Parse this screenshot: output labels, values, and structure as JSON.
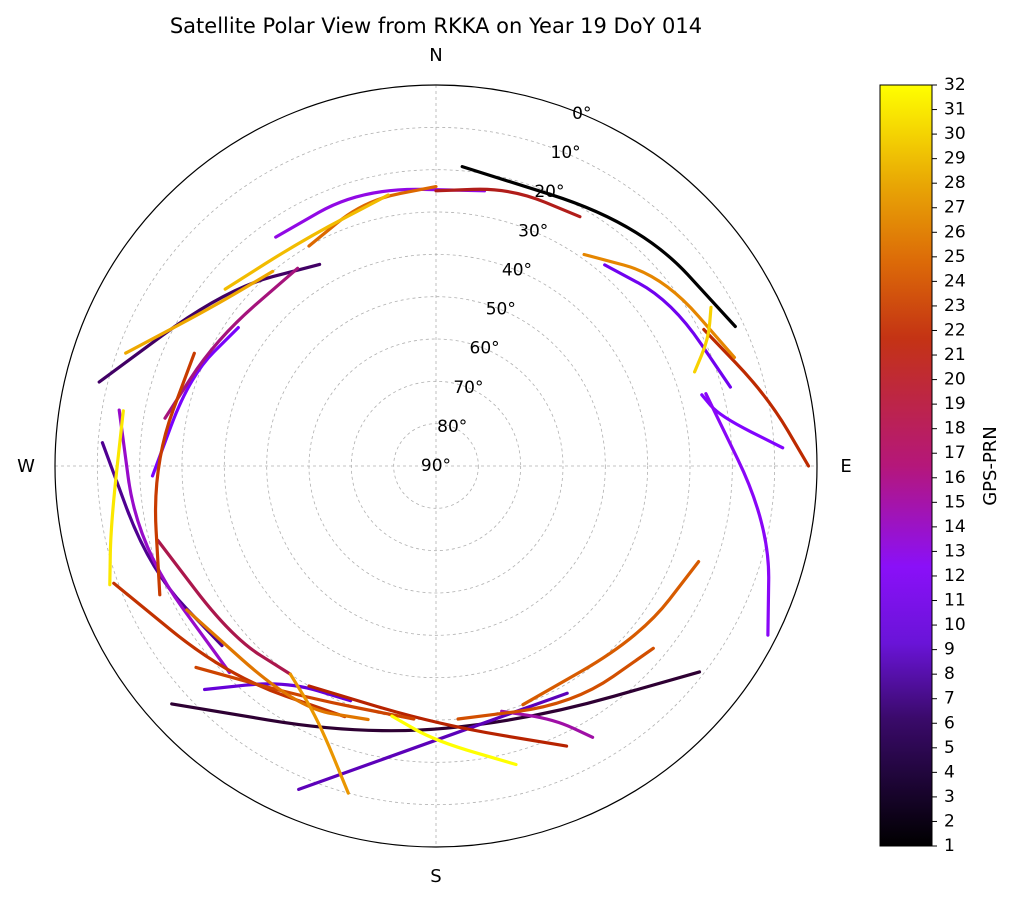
{
  "chart_data": {
    "type": "scatter",
    "subtype": "polar-skyplot",
    "title": "Satellite Polar View from RKKA on Year 19 DoY 014",
    "compass": {
      "north": "N",
      "east": "E",
      "south": "S",
      "west": "W"
    },
    "elevation_ticks": [
      0,
      10,
      20,
      30,
      40,
      50,
      60,
      70,
      80,
      90
    ],
    "elevation_tick_labels": [
      "0°",
      "10°",
      "20°",
      "30°",
      "40°",
      "50°",
      "60°",
      "70°",
      "80°",
      "90°"
    ],
    "elevation_range": [
      0,
      90
    ],
    "azimuth_direction": "clockwise",
    "azimuth_zero": "north",
    "grid": true,
    "grid_style": "dashed",
    "colorbar": {
      "label": "GPS-PRN",
      "colormap": "gnuplot",
      "min": 1,
      "max": 32,
      "ticks": [
        1,
        2,
        3,
        4,
        5,
        6,
        7,
        8,
        9,
        10,
        11,
        12,
        13,
        14,
        15,
        16,
        17,
        18,
        19,
        20,
        21,
        22,
        23,
        24,
        25,
        26,
        27,
        28,
        29,
        30,
        31,
        32
      ],
      "tick_labels": [
        "1",
        "2",
        "3",
        "4",
        "5",
        "6",
        "7",
        "8",
        "9",
        "10",
        "11",
        "12",
        "13",
        "14",
        "15",
        "16",
        "17",
        "18",
        "19",
        "20",
        "21",
        "22",
        "23",
        "24",
        "25",
        "26",
        "27",
        "28",
        "29",
        "30",
        "31",
        "32"
      ],
      "placement": "right"
    },
    "series_note_units": "points are [azimuth_deg, elevation_deg]; color encodes PRN",
    "series": [
      {
        "prn": 1,
        "points": [
          [
            5,
            19
          ],
          [
            40,
            15
          ],
          [
            65,
            12
          ]
        ]
      },
      {
        "prn": 2,
        "points": [
          [
            228,
            6
          ],
          [
            195,
            24
          ],
          [
            160,
            26
          ],
          [
            128,
            11
          ]
        ]
      },
      {
        "prn": 3,
        "points": [
          [
            284,
            8
          ],
          [
            310,
            25
          ],
          [
            330,
            35
          ]
        ]
      },
      {
        "prn": 4,
        "points": [
          [
            274,
            11
          ],
          [
            250,
            18
          ],
          [
            230,
            24
          ]
        ]
      },
      {
        "prn": 5,
        "points": [
          [
            203,
            7
          ],
          [
            175,
            27
          ],
          [
            150,
            28
          ]
        ]
      },
      {
        "prn": 6,
        "points": [
          [
            226,
            14
          ],
          [
            215,
            28
          ],
          [
            200,
            31
          ]
        ]
      },
      {
        "prn": 7,
        "points": [
          [
            40,
            28
          ],
          [
            55,
            22
          ],
          [
            75,
            18
          ]
        ]
      },
      {
        "prn": 8,
        "points": [
          [
            268,
            23
          ],
          [
            290,
            28
          ],
          [
            305,
            33
          ]
        ]
      },
      {
        "prn": 9,
        "points": [
          [
            87,
            8
          ],
          [
            80,
            22
          ],
          [
            75,
            25
          ]
        ]
      },
      {
        "prn": 10,
        "points": [
          [
            75,
            24
          ],
          [
            100,
            10
          ],
          [
            117,
            2
          ]
        ]
      },
      {
        "prn": 11,
        "points": [
          [
            325,
            24
          ],
          [
            345,
            22
          ],
          [
            10,
            24
          ]
        ]
      },
      {
        "prn": 12,
        "points": [
          [
            280,
            14
          ],
          [
            255,
            17
          ],
          [
            225,
            21
          ]
        ]
      },
      {
        "prn": 13,
        "points": [
          [
            150,
            16
          ],
          [
            155,
            24
          ],
          [
            165,
            30
          ]
        ]
      },
      {
        "prn": 14,
        "points": [
          [
            325,
            33
          ],
          [
            300,
            30
          ],
          [
            280,
            25
          ]
        ]
      },
      {
        "prn": 15,
        "points": [
          [
            255,
            22
          ],
          [
            230,
            27
          ],
          [
            215,
            30
          ]
        ]
      },
      {
        "prn": 16,
        "points": [
          [
            0,
            25
          ],
          [
            15,
            22
          ],
          [
            30,
            22
          ]
        ]
      },
      {
        "prn": 17,
        "points": [
          [
            155,
            17
          ],
          [
            180,
            29
          ],
          [
            210,
            30
          ]
        ]
      },
      {
        "prn": 18,
        "points": [
          [
            63,
            19
          ],
          [
            78,
            10
          ],
          [
            90,
            2
          ]
        ]
      },
      {
        "prn": 19,
        "points": [
          [
            250,
            9
          ],
          [
            225,
            20
          ],
          [
            200,
            27
          ]
        ]
      },
      {
        "prn": 20,
        "points": [
          [
            245,
            18
          ],
          [
            270,
            23
          ],
          [
            295,
            27
          ]
        ]
      },
      {
        "prn": 21,
        "points": [
          [
            230,
            16
          ],
          [
            210,
            27
          ],
          [
            185,
            30
          ]
        ]
      },
      {
        "prn": 22,
        "points": [
          [
            130,
            23
          ],
          [
            150,
            25
          ],
          [
            175,
            30
          ]
        ]
      },
      {
        "prn": 23,
        "points": [
          [
            110,
            24
          ],
          [
            130,
            27
          ],
          [
            160,
            30
          ]
        ]
      },
      {
        "prn": 24,
        "points": [
          [
            330,
            30
          ],
          [
            345,
            25
          ],
          [
            0,
            24
          ]
        ]
      },
      {
        "prn": 25,
        "points": [
          [
            195,
            28
          ],
          [
            210,
            24
          ],
          [
            240,
            22
          ]
        ]
      },
      {
        "prn": 26,
        "points": [
          [
            35,
            29
          ],
          [
            50,
            20
          ],
          [
            70,
            15
          ]
        ]
      },
      {
        "prn": 27,
        "points": [
          [
            215,
            30
          ],
          [
            205,
            24
          ],
          [
            195,
            10
          ]
        ]
      },
      {
        "prn": 28,
        "points": [
          [
            320,
            30
          ],
          [
            305,
            25
          ],
          [
            290,
            12
          ]
        ]
      },
      {
        "prn": 29,
        "points": [
          [
            310,
            25
          ],
          [
            330,
            28
          ],
          [
            350,
            25
          ]
        ]
      },
      {
        "prn": 30,
        "points": [
          [
            70,
            25
          ],
          [
            65,
            19
          ],
          [
            60,
            15
          ]
        ]
      },
      {
        "prn": 31,
        "points": [
          [
            280,
            15
          ],
          [
            260,
            12
          ],
          [
            250,
            8
          ]
        ]
      },
      {
        "prn": 32,
        "points": [
          [
            190,
            30
          ],
          [
            180,
            25
          ],
          [
            165,
            17
          ]
        ]
      }
    ]
  }
}
